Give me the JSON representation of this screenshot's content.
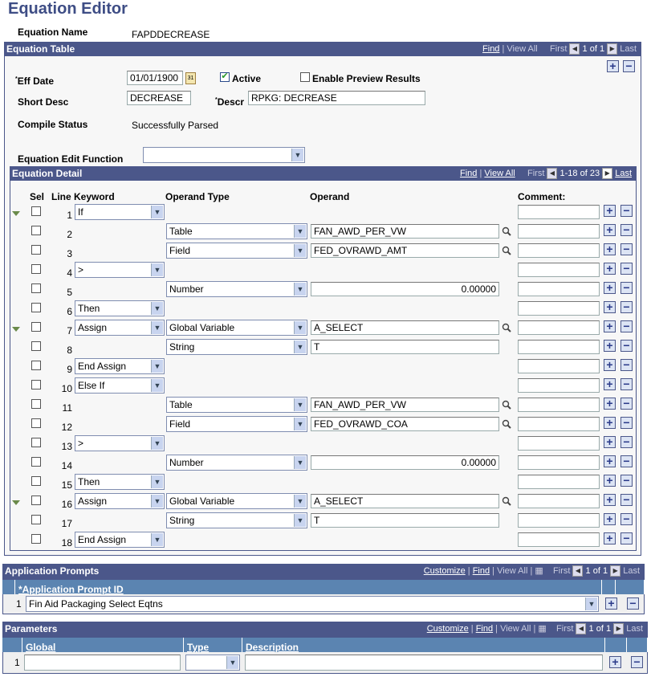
{
  "page_title": "Equation Editor",
  "equation_name_label": "Equation Name",
  "equation_name": "FAPDDECREASE",
  "equation_table": {
    "title": "Equation Table",
    "find": "Find",
    "view_all": "View All",
    "first": "First",
    "count": "1 of 1",
    "last": "Last",
    "eff_date_label": "Eff Date",
    "eff_date": "01/01/1900",
    "calendar_icon_text": "31",
    "active_label": "Active",
    "active": true,
    "preview_label": "Enable Preview Results",
    "preview": false,
    "short_desc_label": "Short Desc",
    "short_desc": "DECREASE",
    "descr_label": "Descr",
    "descr": "RPKG:  DECREASE",
    "compile_status_label": "Compile Status",
    "compile_status": "Successfully Parsed",
    "edit_function_label": "Equation Edit Function",
    "edit_function": ""
  },
  "equation_detail": {
    "title": "Equation Detail",
    "find": "Find",
    "view_all": "View All",
    "first": "First",
    "count": "1-18 of 23",
    "last": "Last",
    "columns": {
      "sel": "Sel",
      "line": "Line",
      "keyword": "Keyword",
      "operand_type": "Operand Type",
      "operand": "Operand",
      "comment": "Comment:"
    },
    "rows": [
      {
        "line": "1",
        "keyword": "If",
        "expand": true
      },
      {
        "line": "2",
        "operand_type": "Table",
        "operand": "FAN_AWD_PER_VW",
        "lookup": true
      },
      {
        "line": "3",
        "operand_type": "Field",
        "operand": "FED_OVRAWD_AMT",
        "lookup": true
      },
      {
        "line": "4",
        "keyword": ">"
      },
      {
        "line": "5",
        "operand_type": "Number",
        "operand": "0.00000",
        "numeric": true
      },
      {
        "line": "6",
        "keyword": "Then"
      },
      {
        "line": "7",
        "keyword": "Assign",
        "operand_type": "Global Variable",
        "operand": "A_SELECT",
        "lookup": true,
        "expand": true
      },
      {
        "line": "8",
        "operand_type": "String",
        "operand": "T"
      },
      {
        "line": "9",
        "keyword": "End Assign"
      },
      {
        "line": "10",
        "keyword": "Else If"
      },
      {
        "line": "11",
        "operand_type": "Table",
        "operand": "FAN_AWD_PER_VW",
        "lookup": true
      },
      {
        "line": "12",
        "operand_type": "Field",
        "operand": "FED_OVRAWD_COA",
        "lookup": true
      },
      {
        "line": "13",
        "keyword": ">"
      },
      {
        "line": "14",
        "operand_type": "Number",
        "operand": "0.00000",
        "numeric": true
      },
      {
        "line": "15",
        "keyword": "Then"
      },
      {
        "line": "16",
        "keyword": "Assign",
        "operand_type": "Global Variable",
        "operand": "A_SELECT",
        "lookup": true,
        "expand": true
      },
      {
        "line": "17",
        "operand_type": "String",
        "operand": "T"
      },
      {
        "line": "18",
        "keyword": "End Assign"
      }
    ]
  },
  "application_prompts": {
    "title": "Application Prompts",
    "customize": "Customize",
    "find": "Find",
    "view_all": "View All",
    "first": "First",
    "count": "1 of 1",
    "last": "Last",
    "column": "*Application Prompt ID",
    "row_num": "1",
    "value": "Fin Aid Packaging Select Eqtns"
  },
  "parameters": {
    "title": "Parameters",
    "customize": "Customize",
    "find": "Find",
    "view_all": "View All",
    "first": "First",
    "count": "1 of 1",
    "last": "Last",
    "columns": {
      "global": "Global",
      "type": "Type",
      "description": "Description"
    },
    "row_num": "1",
    "global": "",
    "type": "",
    "description": ""
  }
}
